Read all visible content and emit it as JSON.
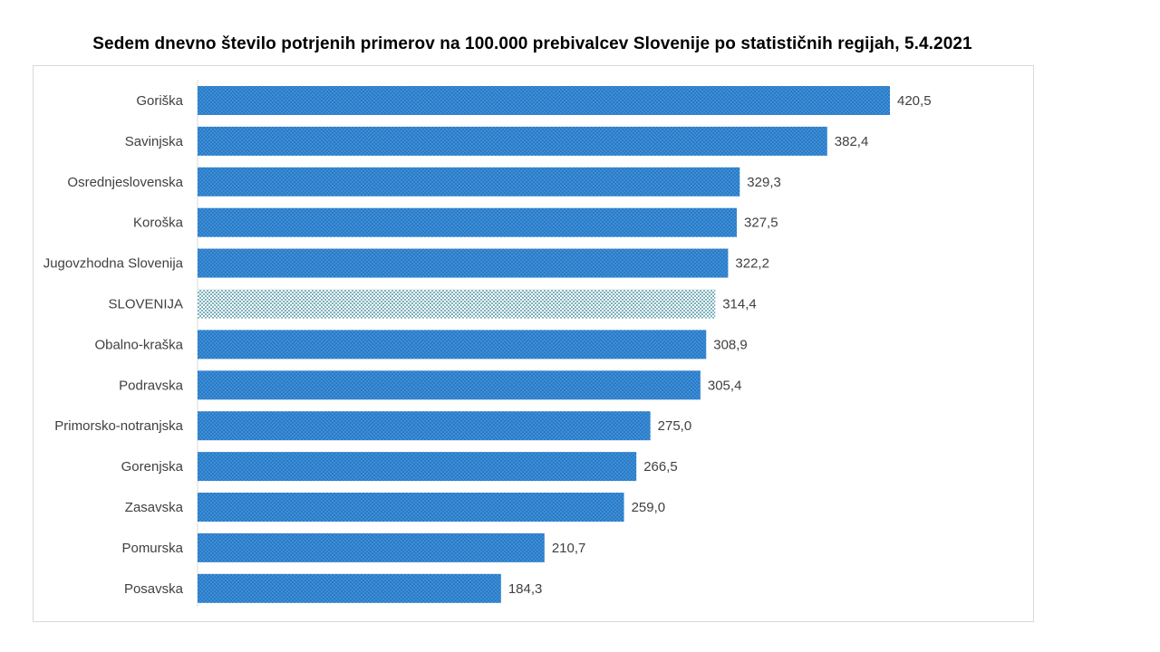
{
  "chart_data": {
    "type": "bar",
    "orientation": "horizontal",
    "title": "Sedem dnevno število potrjenih primerov na 100.000  prebivalcev Slovenije po statističnih regijah, 5.4.2021",
    "categories": [
      "Goriška",
      "Savinjska",
      "Osrednjeslovenska",
      "Koroška",
      "Jugovzhodna Slovenija",
      "SLOVENIJA",
      "Obalno-kraška",
      "Podravska",
      "Primorsko-notranjska",
      "Gorenjska",
      "Zasavska",
      "Pomurska",
      "Posavska"
    ],
    "values": [
      420.5,
      382.4,
      329.3,
      327.5,
      322.2,
      314.4,
      308.9,
      305.4,
      275.0,
      266.5,
      259.0,
      210.7,
      184.3
    ],
    "value_labels": [
      "420,5",
      "382,4",
      "329,3",
      "327,5",
      "322,2",
      "314,4",
      "308,9",
      "305,4",
      "275,0",
      "266,5",
      "259,0",
      "210,7",
      "184,3"
    ],
    "highlight_category": "SLOVENIJA",
    "xlim": [
      0,
      440
    ],
    "grid": false,
    "legend": "none",
    "colors": {
      "bar": "#3a8fdc",
      "bar_pattern": "#1f5f9e",
      "highlight": "#ffffff",
      "highlight_pattern": "#1f7a8c",
      "label": "#404040",
      "axis": "#d9d9d9"
    }
  }
}
